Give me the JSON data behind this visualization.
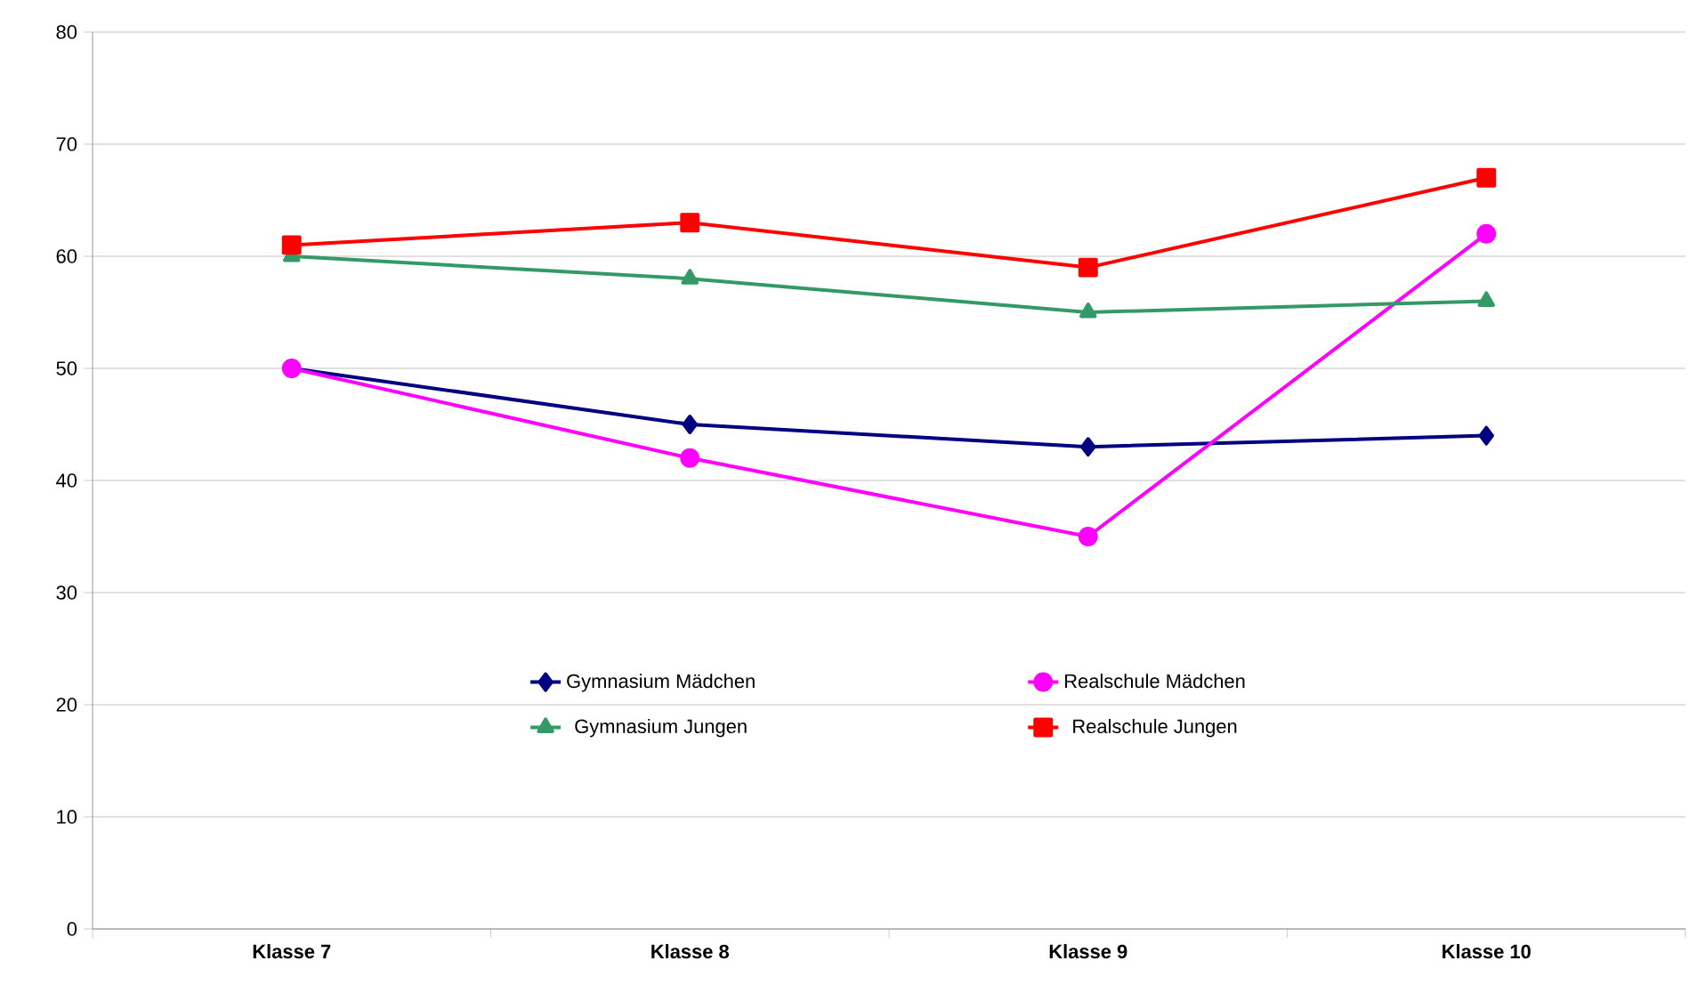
{
  "chart_data": {
    "type": "line",
    "categories": [
      "Klasse 7",
      "Klasse 8",
      "Klasse 9",
      "Klasse 10"
    ],
    "ylim": [
      0,
      80
    ],
    "yticks": [
      0,
      10,
      20,
      30,
      40,
      50,
      60,
      70,
      80
    ],
    "grid": "y",
    "legend": "bottom",
    "line_style": "solid",
    "series": [
      {
        "name": "Gymnasium Mädchen",
        "color": "#000080",
        "marker": "diamond",
        "values": [
          50,
          45,
          43,
          44
        ]
      },
      {
        "name": "Realschule Mädchen",
        "color": "#ff00ff",
        "marker": "circle",
        "values": [
          50,
          42,
          35,
          62
        ]
      },
      {
        "name": "Gymnasium Jungen",
        "color": "#339966",
        "marker": "triangle",
        "values": [
          60,
          58,
          55,
          56
        ]
      },
      {
        "name": "Realschule Jungen",
        "color": "#ff0000",
        "marker": "square",
        "values": [
          61,
          63,
          59,
          67
        ]
      }
    ]
  }
}
